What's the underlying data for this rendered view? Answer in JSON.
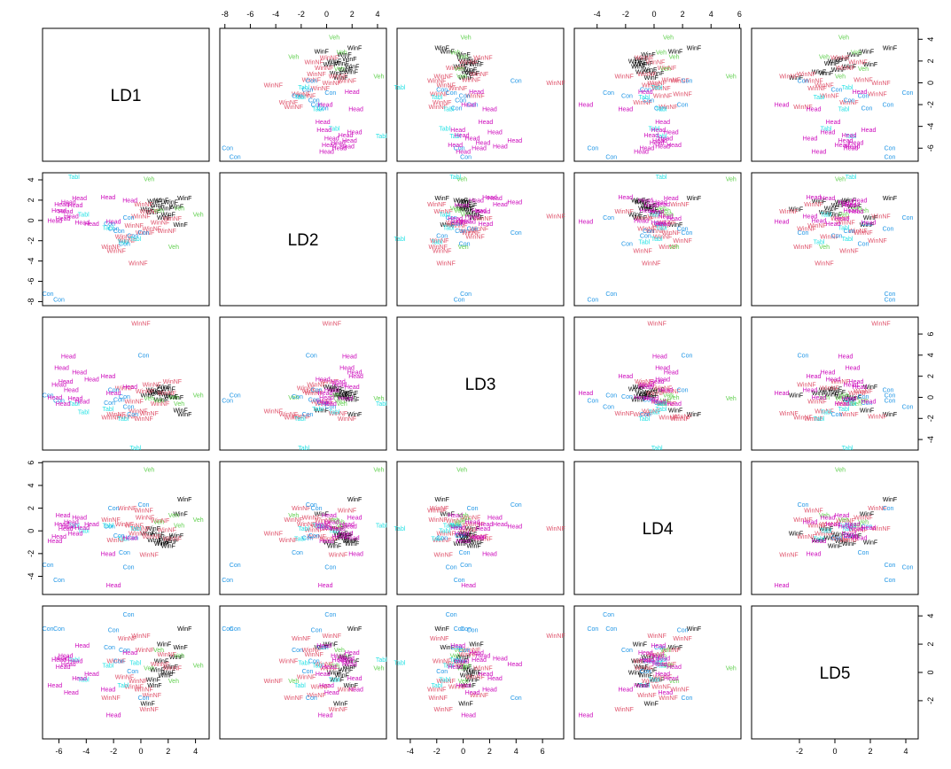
{
  "chart_data": {
    "type": "scatter",
    "title": "",
    "description_kind": "pairs plot of linear discriminant scores with text labels",
    "variables": [
      "LD1",
      "LD2",
      "LD3",
      "LD4",
      "LD5"
    ],
    "ranges": {
      "LD1": [
        -7.2,
        5.0
      ],
      "LD2": [
        -8.4,
        4.7
      ],
      "LD3": [
        -5.0,
        7.6
      ],
      "LD4": [
        -5.6,
        6.1
      ],
      "LD5": [
        -4.7,
        4.7
      ]
    },
    "ticks": {
      "LD1": [
        -6,
        -4,
        -2,
        0,
        2,
        4
      ],
      "LD2": [
        -8,
        -6,
        -4,
        -2,
        0,
        2,
        4
      ],
      "LD3": [
        -4,
        -2,
        0,
        2,
        4,
        6
      ],
      "LD4": [
        -4,
        -2,
        0,
        2,
        4,
        6
      ],
      "LD5": [
        -2,
        0,
        2,
        4
      ]
    },
    "groups": [
      {
        "name": "WinF",
        "color": "#000000"
      },
      {
        "name": "WinNF",
        "color": "#df536b"
      },
      {
        "name": "Veh",
        "color": "#61d04f"
      },
      {
        "name": "Con",
        "color": "#2297e6"
      },
      {
        "name": "Tabl",
        "color": "#28e2e5"
      },
      {
        "name": "Head",
        "color": "#cd0bbc"
      }
    ],
    "points": [
      {
        "g": "WinF",
        "v": [
          1.2,
          1.5,
          0.5,
          -0.3,
          0.2
        ]
      },
      {
        "g": "WinF",
        "v": [
          1.8,
          1.2,
          0.3,
          -0.6,
          -0.2
        ]
      },
      {
        "g": "WinF",
        "v": [
          2.2,
          1.8,
          0.1,
          -0.9,
          0.4
        ]
      },
      {
        "g": "WinF",
        "v": [
          0.9,
          0.8,
          0.7,
          0.2,
          -0.5
        ]
      },
      {
        "g": "WinF",
        "v": [
          1.5,
          2.0,
          -0.2,
          -1.1,
          0.8
        ]
      },
      {
        "g": "WinF",
        "v": [
          2.6,
          1.4,
          0.0,
          -0.4,
          1.1
        ]
      },
      {
        "g": "WinF",
        "v": [
          1.0,
          1.9,
          0.4,
          -0.8,
          -0.9
        ]
      },
      {
        "g": "WinF",
        "v": [
          2.9,
          -0.4,
          -1.2,
          1.5,
          1.8
        ]
      },
      {
        "g": "WinF",
        "v": [
          2.0,
          0.6,
          0.8,
          -1.3,
          0.0
        ]
      },
      {
        "g": "WinF",
        "v": [
          3.2,
          2.2,
          -1.6,
          2.8,
          3.1
        ]
      },
      {
        "g": "WinF",
        "v": [
          0.5,
          1.1,
          0.2,
          -0.2,
          -2.2
        ]
      },
      {
        "g": "WinF",
        "v": [
          1.7,
          0.3,
          1.0,
          -1.0,
          2.0
        ]
      },
      {
        "g": "WinNF",
        "v": [
          -0.5,
          -0.5,
          -0.4,
          0.5,
          -1.0
        ]
      },
      {
        "g": "WinNF",
        "v": [
          0.3,
          -1.2,
          0.6,
          1.2,
          1.6
        ]
      },
      {
        "g": "WinNF",
        "v": [
          -1.0,
          -2.0,
          -1.8,
          2.0,
          2.4
        ]
      },
      {
        "g": "WinNF",
        "v": [
          0.8,
          -0.8,
          1.2,
          -0.5,
          -1.6
        ]
      },
      {
        "g": "WinNF",
        "v": [
          -1.8,
          -3.0,
          -1.6,
          -0.8,
          0.8
        ]
      },
      {
        "g": "WinNF",
        "v": [
          0.0,
          0.4,
          7.0,
          0.2,
          2.6
        ]
      },
      {
        "g": "WinNF",
        "v": [
          -2.2,
          -2.6,
          -1.9,
          1.0,
          -1.8
        ]
      },
      {
        "g": "WinNF",
        "v": [
          1.4,
          -0.2,
          -0.6,
          0.9,
          0.6
        ]
      },
      {
        "g": "WinNF",
        "v": [
          -0.2,
          -4.2,
          -1.3,
          -0.2,
          -0.6
        ]
      },
      {
        "g": "WinNF",
        "v": [
          0.6,
          0.9,
          -1.5,
          -2.1,
          -2.6
        ]
      },
      {
        "g": "WinNF",
        "v": [
          1.9,
          -1.0,
          0.4,
          0.1,
          1.3
        ]
      },
      {
        "g": "WinNF",
        "v": [
          -1.2,
          -1.6,
          0.9,
          0.6,
          -0.3
        ]
      },
      {
        "g": "WinNF",
        "v": [
          2.3,
          0.2,
          1.5,
          -0.7,
          0.3
        ]
      },
      {
        "g": "WinNF",
        "v": [
          0.2,
          1.6,
          -2.0,
          1.8,
          -1.2
        ]
      },
      {
        "g": "Veh",
        "v": [
          4.2,
          0.6,
          0.2,
          1.0,
          0.5
        ]
      },
      {
        "g": "Veh",
        "v": [
          2.8,
          1.2,
          -0.6,
          0.5,
          1.2
        ]
      },
      {
        "g": "Veh",
        "v": [
          0.6,
          4.1,
          -0.1,
          5.4,
          0.3
        ]
      },
      {
        "g": "Veh",
        "v": [
          2.4,
          -2.6,
          0.0,
          1.4,
          -0.6
        ]
      },
      {
        "g": "Veh",
        "v": [
          1.3,
          1.0,
          -0.3,
          0.8,
          1.6
        ]
      },
      {
        "g": "Con",
        "v": [
          -1.6,
          -1.0,
          -0.2,
          -0.4,
          0.8
        ]
      },
      {
        "g": "Con",
        "v": [
          -0.6,
          -1.5,
          -1.6,
          -0.6,
          0.1
        ]
      },
      {
        "g": "Con",
        "v": [
          -2.0,
          -0.8,
          0.7,
          2.0,
          3.0
        ]
      },
      {
        "g": "Con",
        "v": [
          -1.2,
          -2.3,
          0.1,
          -1.9,
          1.6
        ]
      },
      {
        "g": "Con",
        "v": [
          -6.8,
          -7.2,
          0.2,
          -3.0,
          3.1
        ]
      },
      {
        "g": "Con",
        "v": [
          -6.0,
          -7.8,
          -0.3,
          -4.3,
          3.1
        ]
      },
      {
        "g": "Con",
        "v": [
          0.2,
          -1.2,
          4.0,
          2.3,
          -1.8
        ]
      },
      {
        "g": "Con",
        "v": [
          -0.9,
          0.3,
          -0.9,
          -3.2,
          4.1
        ]
      },
      {
        "g": "Con",
        "v": [
          -2.3,
          -0.3,
          -0.5,
          0.4,
          1.8
        ]
      },
      {
        "g": "Tabl",
        "v": [
          -0.4,
          -1.8,
          -4.8,
          0.2,
          0.7
        ]
      },
      {
        "g": "Tabl",
        "v": [
          -2.4,
          -0.7,
          -1.1,
          0.5,
          0.5
        ]
      },
      {
        "g": "Tabl",
        "v": [
          -4.2,
          0.6,
          -1.4,
          0.0,
          -0.5
        ]
      },
      {
        "g": "Tabl",
        "v": [
          -1.3,
          -2.1,
          -2.0,
          -0.7,
          -0.9
        ]
      },
      {
        "g": "Tabl",
        "v": [
          -4.9,
          4.3,
          -0.6,
          0.5,
          0.9
        ]
      },
      {
        "g": "Head",
        "v": [
          -5.8,
          1.6,
          2.8,
          0.6,
          1.0
        ]
      },
      {
        "g": "Head",
        "v": [
          -4.8,
          1.5,
          -0.1,
          -0.2,
          0.8
        ]
      },
      {
        "g": "Head",
        "v": [
          -5.3,
          1.8,
          3.9,
          0.4,
          0.6
        ]
      },
      {
        "g": "Head",
        "v": [
          -6.0,
          1.0,
          1.2,
          -0.5,
          0.9
        ]
      },
      {
        "g": "Head",
        "v": [
          -5.5,
          0.9,
          1.5,
          0.2,
          1.2
        ]
      },
      {
        "g": "Head",
        "v": [
          -4.5,
          2.2,
          2.4,
          1.2,
          -0.4
        ]
      },
      {
        "g": "Head",
        "v": [
          -5.1,
          0.4,
          0.7,
          0.8,
          -1.4
        ]
      },
      {
        "g": "Head",
        "v": [
          -6.3,
          0.0,
          0.0,
          -0.9,
          -0.9
        ]
      },
      {
        "g": "Head",
        "v": [
          -4.3,
          -0.2,
          -0.4,
          0.3,
          1.9
        ]
      },
      {
        "g": "Head",
        "v": [
          -2.4,
          2.3,
          2.0,
          -2.0,
          -1.2
        ]
      },
      {
        "g": "Head",
        "v": [
          -5.7,
          0.2,
          -0.6,
          1.4,
          0.4
        ]
      },
      {
        "g": "Head",
        "v": [
          -2.0,
          -0.1,
          0.4,
          -4.8,
          -3.0
        ]
      },
      {
        "g": "Head",
        "v": [
          -0.8,
          2.0,
          1.0,
          -0.6,
          1.4
        ]
      },
      {
        "g": "Head",
        "v": [
          -3.6,
          -0.3,
          1.7,
          0.6,
          -0.1
        ]
      }
    ]
  }
}
